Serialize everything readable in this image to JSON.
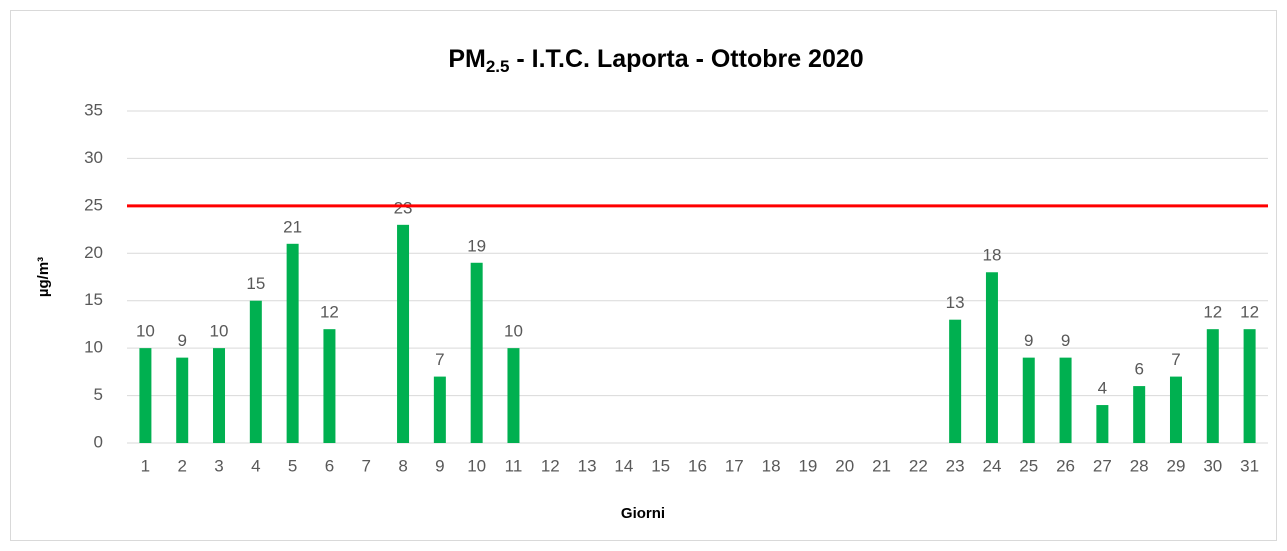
{
  "chart_data": {
    "type": "bar",
    "title": {
      "main": "PM",
      "subscript": "2.5",
      "rest": " - I.T.C. Laporta - Ottobre 2020"
    },
    "xlabel": "Giorni",
    "ylabel": "µg/m³",
    "categories": [
      "1",
      "2",
      "3",
      "4",
      "5",
      "6",
      "7",
      "8",
      "9",
      "10",
      "11",
      "12",
      "13",
      "14",
      "15",
      "16",
      "17",
      "18",
      "19",
      "20",
      "21",
      "22",
      "23",
      "24",
      "25",
      "26",
      "27",
      "28",
      "29",
      "30",
      "31"
    ],
    "values": [
      10,
      9,
      10,
      15,
      21,
      12,
      null,
      23,
      7,
      19,
      10,
      null,
      null,
      null,
      null,
      null,
      null,
      null,
      null,
      null,
      null,
      null,
      13,
      18,
      9,
      9,
      4,
      6,
      7,
      12,
      12
    ],
    "color": "#00b050",
    "reference_line": {
      "value": 25,
      "color": "#ff0000"
    },
    "ylim": [
      0,
      35
    ],
    "yticks": [
      0,
      5,
      10,
      15,
      20,
      25,
      30,
      35
    ],
    "grid": true
  }
}
